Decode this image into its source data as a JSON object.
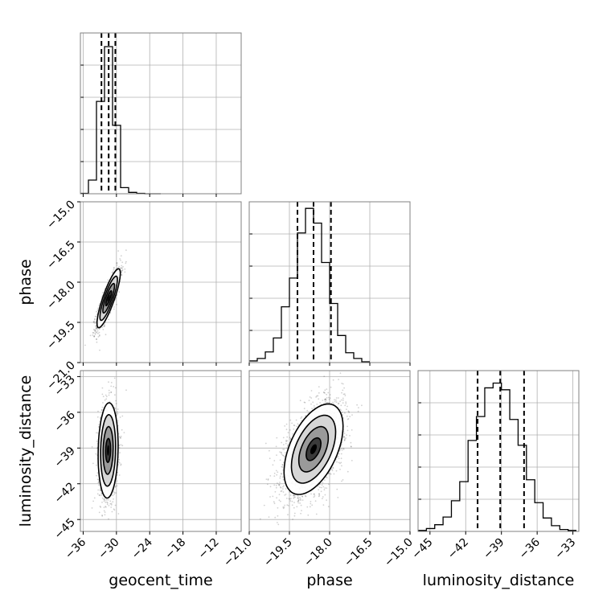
{
  "chart_data": {
    "type": "corner",
    "parameters": [
      "geocent_time",
      "phase",
      "luminosity_distance"
    ],
    "panels": {
      "geocent_time": {
        "xlim": [
          -36.5,
          -7.5
        ],
        "xticks": [
          -36,
          -30,
          -24,
          -18,
          -12
        ],
        "xtick_labels": [
          "−36",
          "−30",
          "−24",
          "−18",
          "−12"
        ],
        "quantiles": [
          -32.7,
          -31.4,
          -30.2
        ],
        "hist_edges": [
          -36.5,
          -35.05,
          -33.6,
          -32.15,
          -30.7,
          -29.25,
          -27.8,
          -26.35,
          -24.9,
          -23.45,
          -22.0
        ],
        "hist_counts": [
          1,
          40,
          270,
          430,
          200,
          18,
          4,
          1,
          0,
          0
        ],
        "hist_ymax": 470
      },
      "phase": {
        "xlim": [
          -21.0,
          -15.0
        ],
        "xticks": [
          -21.0,
          -19.5,
          -18.0,
          -16.5,
          -15.0
        ],
        "xtick_labels": [
          "−21.0",
          "−19.5",
          "−18.0",
          "−16.5",
          "−15.0"
        ],
        "yticks": [
          -15.0,
          -16.5,
          -18.0,
          -19.5,
          -21.0
        ],
        "ytick_labels": [
          "−15.0",
          "−16.5",
          "−18.0",
          "−19.5",
          "−21.0"
        ],
        "quantiles": [
          -19.2,
          -18.6,
          -17.95
        ],
        "hist_edges": [
          -21.0,
          -20.7,
          -20.4,
          -20.1,
          -19.8,
          -19.5,
          -19.2,
          -18.9,
          -18.6,
          -18.3,
          -18.0,
          -17.7,
          -17.4,
          -17.1,
          -16.8,
          -16.5
        ],
        "hist_counts": [
          2,
          5,
          13,
          30,
          68,
          103,
          158,
          188,
          170,
          122,
          72,
          33,
          12,
          5,
          1
        ],
        "hist_ymax": 196
      },
      "luminosity_distance": {
        "xlim": [
          -46.0,
          -32.5
        ],
        "xticks": [
          -45,
          -42,
          -39,
          -36,
          -33
        ],
        "xtick_labels": [
          "−45",
          "−42",
          "−39",
          "−36",
          "−33"
        ],
        "yticks": [
          -33,
          -36,
          -39,
          -42,
          -45
        ],
        "ytick_labels": [
          "−33",
          "−36",
          "−39",
          "−42",
          "−45"
        ],
        "quantiles": [
          -41.0,
          -39.1,
          -37.1
        ],
        "hist_edges": [
          -46.0,
          -45.3,
          -44.6,
          -43.9,
          -43.2,
          -42.5,
          -41.8,
          -41.1,
          -40.4,
          -39.7,
          -39.0,
          -38.3,
          -37.6,
          -36.9,
          -36.2,
          -35.5,
          -34.8,
          -34.1,
          -33.4,
          -32.7
        ],
        "hist_counts": [
          1,
          3,
          7,
          15,
          32,
          52,
          95,
          120,
          150,
          155,
          148,
          117,
          90,
          54,
          30,
          14,
          6,
          2,
          1
        ],
        "hist_ymax": 168
      }
    },
    "scatter_2d": [
      {
        "x": "geocent_time",
        "y": "phase",
        "mean": [
          -31.4,
          -18.6
        ],
        "std": [
          1.05,
          0.55
        ],
        "corr": 0.85,
        "n_points": 1200
      },
      {
        "x": "geocent_time",
        "y": "luminosity_distance",
        "mean": [
          -31.5,
          -39.2
        ],
        "std": [
          0.9,
          2.0
        ],
        "corr": 0.1,
        "n_points": 1200
      },
      {
        "x": "phase",
        "y": "luminosity_distance",
        "mean": [
          -18.6,
          -39.1
        ],
        "std": [
          0.55,
          1.9
        ],
        "corr": 0.5,
        "n_points": 2500
      }
    ],
    "contour_levels_sigma": [
      0.5,
      1.0,
      1.5,
      2.0
    ],
    "grid": true
  }
}
